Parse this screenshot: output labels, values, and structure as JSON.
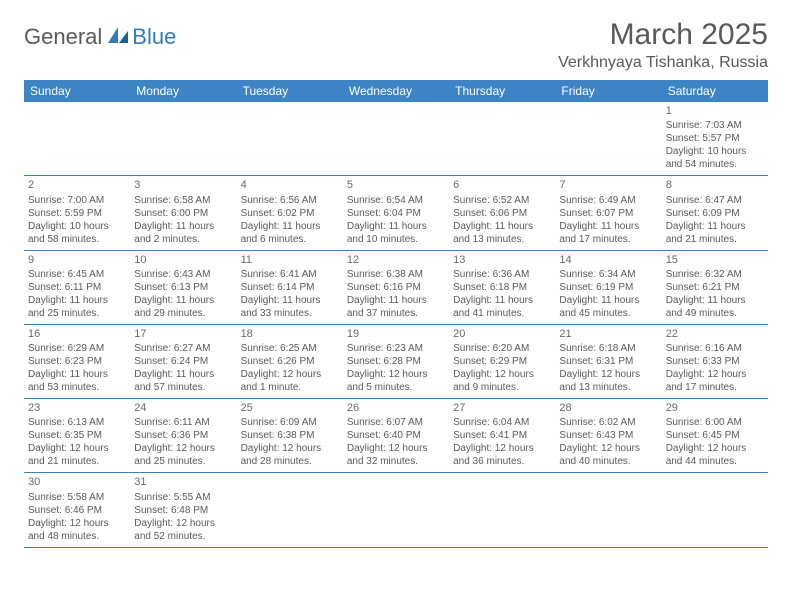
{
  "logo": {
    "part1": "General",
    "part2": "Blue"
  },
  "title": "March 2025",
  "location": "Verkhnyaya Tishanka, Russia",
  "weekdays": [
    "Sunday",
    "Monday",
    "Tuesday",
    "Wednesday",
    "Thursday",
    "Friday",
    "Saturday"
  ],
  "colors": {
    "header_bg": "#3d84c4",
    "header_fg": "#ffffff",
    "cell_border": "#3d84c4",
    "text": "#5a5a5a",
    "logo_accent": "#2f7bbf"
  },
  "grid": [
    [
      null,
      null,
      null,
      null,
      null,
      null,
      {
        "n": 1,
        "sr": "7:03 AM",
        "ss": "5:57 PM",
        "dl": "10 hours and 54 minutes."
      }
    ],
    [
      {
        "n": 2,
        "sr": "7:00 AM",
        "ss": "5:59 PM",
        "dl": "10 hours and 58 minutes."
      },
      {
        "n": 3,
        "sr": "6:58 AM",
        "ss": "6:00 PM",
        "dl": "11 hours and 2 minutes."
      },
      {
        "n": 4,
        "sr": "6:56 AM",
        "ss": "6:02 PM",
        "dl": "11 hours and 6 minutes."
      },
      {
        "n": 5,
        "sr": "6:54 AM",
        "ss": "6:04 PM",
        "dl": "11 hours and 10 minutes."
      },
      {
        "n": 6,
        "sr": "6:52 AM",
        "ss": "6:06 PM",
        "dl": "11 hours and 13 minutes."
      },
      {
        "n": 7,
        "sr": "6:49 AM",
        "ss": "6:07 PM",
        "dl": "11 hours and 17 minutes."
      },
      {
        "n": 8,
        "sr": "6:47 AM",
        "ss": "6:09 PM",
        "dl": "11 hours and 21 minutes."
      }
    ],
    [
      {
        "n": 9,
        "sr": "6:45 AM",
        "ss": "6:11 PM",
        "dl": "11 hours and 25 minutes."
      },
      {
        "n": 10,
        "sr": "6:43 AM",
        "ss": "6:13 PM",
        "dl": "11 hours and 29 minutes."
      },
      {
        "n": 11,
        "sr": "6:41 AM",
        "ss": "6:14 PM",
        "dl": "11 hours and 33 minutes."
      },
      {
        "n": 12,
        "sr": "6:38 AM",
        "ss": "6:16 PM",
        "dl": "11 hours and 37 minutes."
      },
      {
        "n": 13,
        "sr": "6:36 AM",
        "ss": "6:18 PM",
        "dl": "11 hours and 41 minutes."
      },
      {
        "n": 14,
        "sr": "6:34 AM",
        "ss": "6:19 PM",
        "dl": "11 hours and 45 minutes."
      },
      {
        "n": 15,
        "sr": "6:32 AM",
        "ss": "6:21 PM",
        "dl": "11 hours and 49 minutes."
      }
    ],
    [
      {
        "n": 16,
        "sr": "6:29 AM",
        "ss": "6:23 PM",
        "dl": "11 hours and 53 minutes."
      },
      {
        "n": 17,
        "sr": "6:27 AM",
        "ss": "6:24 PM",
        "dl": "11 hours and 57 minutes."
      },
      {
        "n": 18,
        "sr": "6:25 AM",
        "ss": "6:26 PM",
        "dl": "12 hours and 1 minute."
      },
      {
        "n": 19,
        "sr": "6:23 AM",
        "ss": "6:28 PM",
        "dl": "12 hours and 5 minutes."
      },
      {
        "n": 20,
        "sr": "6:20 AM",
        "ss": "6:29 PM",
        "dl": "12 hours and 9 minutes."
      },
      {
        "n": 21,
        "sr": "6:18 AM",
        "ss": "6:31 PM",
        "dl": "12 hours and 13 minutes."
      },
      {
        "n": 22,
        "sr": "6:16 AM",
        "ss": "6:33 PM",
        "dl": "12 hours and 17 minutes."
      }
    ],
    [
      {
        "n": 23,
        "sr": "6:13 AM",
        "ss": "6:35 PM",
        "dl": "12 hours and 21 minutes."
      },
      {
        "n": 24,
        "sr": "6:11 AM",
        "ss": "6:36 PM",
        "dl": "12 hours and 25 minutes."
      },
      {
        "n": 25,
        "sr": "6:09 AM",
        "ss": "6:38 PM",
        "dl": "12 hours and 28 minutes."
      },
      {
        "n": 26,
        "sr": "6:07 AM",
        "ss": "6:40 PM",
        "dl": "12 hours and 32 minutes."
      },
      {
        "n": 27,
        "sr": "6:04 AM",
        "ss": "6:41 PM",
        "dl": "12 hours and 36 minutes."
      },
      {
        "n": 28,
        "sr": "6:02 AM",
        "ss": "6:43 PM",
        "dl": "12 hours and 40 minutes."
      },
      {
        "n": 29,
        "sr": "6:00 AM",
        "ss": "6:45 PM",
        "dl": "12 hours and 44 minutes."
      }
    ],
    [
      {
        "n": 30,
        "sr": "5:58 AM",
        "ss": "6:46 PM",
        "dl": "12 hours and 48 minutes."
      },
      {
        "n": 31,
        "sr": "5:55 AM",
        "ss": "6:48 PM",
        "dl": "12 hours and 52 minutes."
      },
      null,
      null,
      null,
      null,
      null
    ]
  ],
  "labels": {
    "sunrise": "Sunrise: ",
    "sunset": "Sunset: ",
    "daylight": "Daylight: "
  }
}
